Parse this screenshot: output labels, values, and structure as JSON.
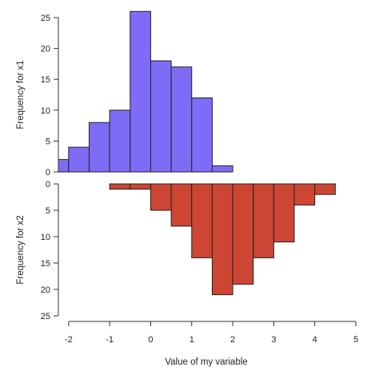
{
  "chart_data": {
    "type": "bar",
    "subtype": "mirrored-histogram",
    "xlabel": "Value of my variable",
    "xlim": [
      -2.25,
      5
    ],
    "x_ticks": [
      -2,
      -1,
      0,
      1,
      2,
      3,
      4,
      5
    ],
    "bin_width": 0.5,
    "series": [
      {
        "name": "x1",
        "ylabel": "Frequency for x1",
        "ylim": [
          0,
          25
        ],
        "y_ticks": [
          0,
          5,
          10,
          15,
          20,
          25
        ],
        "direction": "up",
        "color": "#7f6cf6",
        "bins": [
          {
            "x0": -2.5,
            "x1": -2.0,
            "count": 2
          },
          {
            "x0": -2.0,
            "x1": -1.5,
            "count": 4
          },
          {
            "x0": -1.5,
            "x1": -1.0,
            "count": 8
          },
          {
            "x0": -1.0,
            "x1": -0.5,
            "count": 10
          },
          {
            "x0": -0.5,
            "x1": 0.0,
            "count": 26
          },
          {
            "x0": 0.0,
            "x1": 0.5,
            "count": 18
          },
          {
            "x0": 0.5,
            "x1": 1.0,
            "count": 17
          },
          {
            "x0": 1.0,
            "x1": 1.5,
            "count": 12
          },
          {
            "x0": 1.5,
            "x1": 2.0,
            "count": 1
          }
        ]
      },
      {
        "name": "x2",
        "ylabel": "Frequency for x2",
        "ylim": [
          0,
          25
        ],
        "y_ticks": [
          0,
          5,
          10,
          15,
          20,
          25
        ],
        "direction": "down",
        "color": "#cc4633",
        "bins": [
          {
            "x0": -1.0,
            "x1": -0.5,
            "count": 1
          },
          {
            "x0": -0.5,
            "x1": 0.0,
            "count": 1
          },
          {
            "x0": 0.0,
            "x1": 0.5,
            "count": 5
          },
          {
            "x0": 0.5,
            "x1": 1.0,
            "count": 8
          },
          {
            "x0": 1.0,
            "x1": 1.5,
            "count": 14
          },
          {
            "x0": 1.5,
            "x1": 2.0,
            "count": 21
          },
          {
            "x0": 2.0,
            "x1": 2.5,
            "count": 19
          },
          {
            "x0": 2.5,
            "x1": 3.0,
            "count": 14
          },
          {
            "x0": 3.0,
            "x1": 3.5,
            "count": 11
          },
          {
            "x0": 3.5,
            "x1": 4.0,
            "count": 4
          },
          {
            "x0": 4.0,
            "x1": 4.5,
            "count": 2
          }
        ]
      }
    ]
  }
}
